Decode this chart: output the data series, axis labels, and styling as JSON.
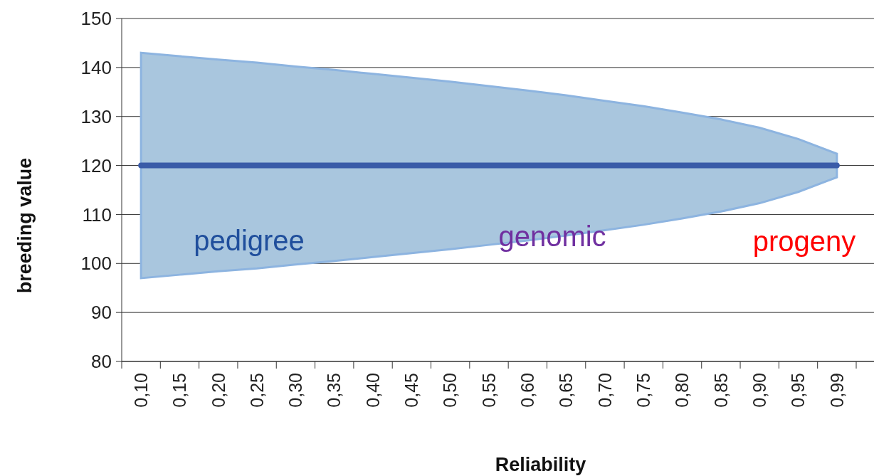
{
  "chart_data": {
    "type": "line",
    "xlabel": "Reliability",
    "ylabel": "breeding value",
    "categories": [
      "0,10",
      "0,15",
      "0,20",
      "0,25",
      "0,30",
      "0,35",
      "0,40",
      "0,45",
      "0,50",
      "0,55",
      "0,60",
      "0,65",
      "0,70",
      "0,75",
      "0,80",
      "0,85",
      "0,90",
      "0,95",
      "0,99"
    ],
    "series": [
      {
        "color": "#3a5ba8",
        "values": [
          120,
          120,
          120,
          120,
          120,
          120,
          120,
          120,
          120,
          120,
          120,
          120,
          120,
          120,
          120,
          120,
          120,
          120,
          120
        ],
        "lower": [
          97,
          97.7,
          98.4,
          99,
          99.8,
          100.5,
          101.3,
          102.1,
          102.9,
          103.8,
          104.7,
          105.7,
          106.8,
          107.9,
          109.2,
          110.6,
          112.3,
          114.6,
          117.6
        ],
        "upper": [
          143,
          142.3,
          141.6,
          141,
          140.2,
          139.5,
          138.7,
          137.9,
          137.1,
          136.2,
          135.3,
          134.3,
          133.2,
          132.1,
          130.8,
          129.4,
          127.7,
          125.4,
          122.4
        ]
      }
    ],
    "ylim": [
      80,
      150
    ],
    "yticks": [
      80,
      90,
      100,
      110,
      120,
      130,
      140,
      150
    ],
    "grid": "y",
    "marker": "none",
    "line_style": "solid",
    "annotations": [
      "pedigree",
      "genomic",
      "progeny"
    ]
  }
}
